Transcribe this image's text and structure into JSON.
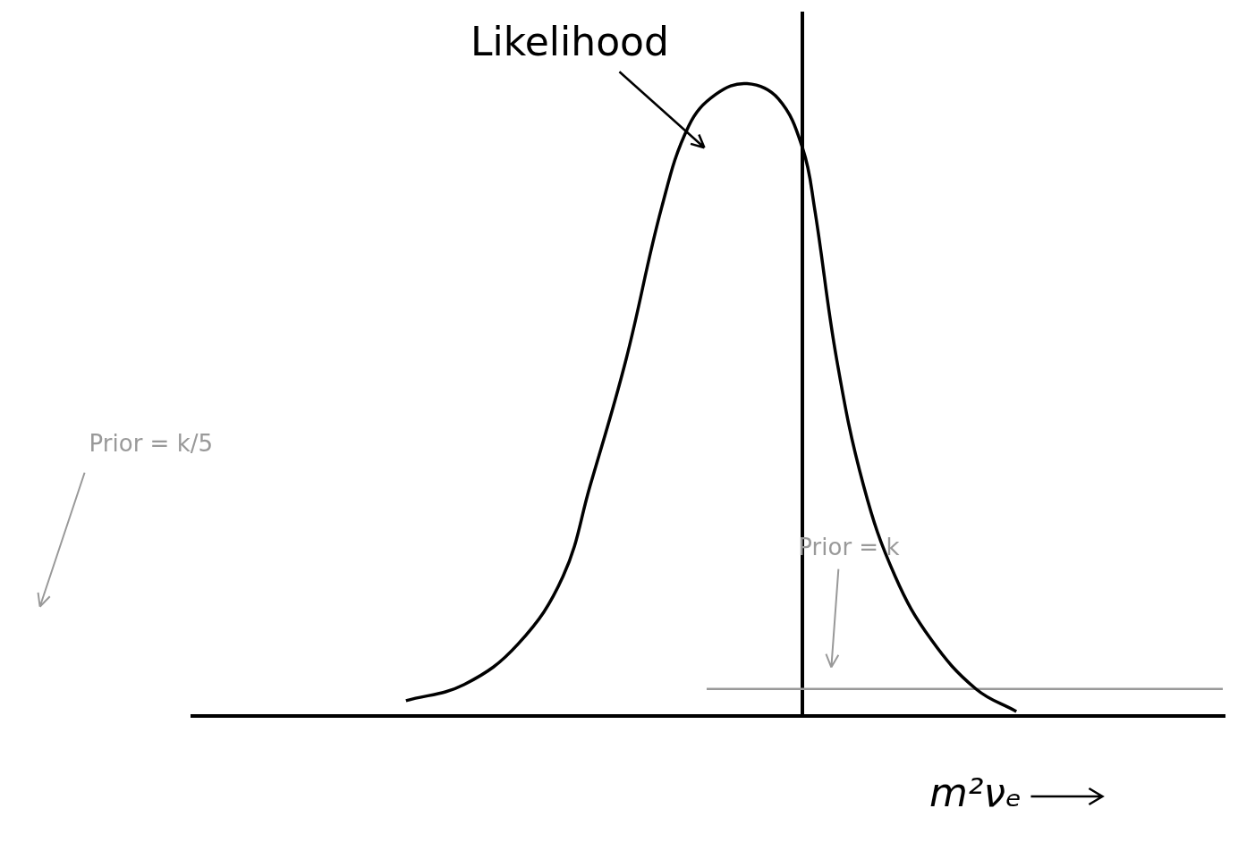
{
  "chart_data": {
    "type": "line",
    "x_label": "m²νₑ",
    "xlim": [
      -6.8,
      4.7
    ],
    "ylim": [
      0,
      7.8
    ],
    "tick_labels": false,
    "grid": false,
    "series": [
      {
        "name": "Likelihood",
        "color": "#000000",
        "line_style": "solid",
        "x": [
          -4.42,
          -3.77,
          -3.17,
          -2.67,
          -2.37,
          -1.97,
          -1.57,
          -1.27,
          -0.97,
          -0.62,
          -0.27,
          0,
          0.13,
          0.38,
          0.68,
          1.03,
          1.43,
          1.93,
          2.38
        ],
        "values": [
          0.17,
          0.35,
          0.8,
          1.55,
          2.55,
          3.95,
          5.65,
          6.55,
          6.9,
          7.02,
          6.85,
          6.3,
          5.65,
          3.95,
          2.55,
          1.55,
          0.85,
          0.3,
          0.05
        ]
      },
      {
        "name": "Prior = k",
        "color": "#999999",
        "line_style": "solid",
        "x": [
          -1.07,
          4.68
        ],
        "values": [
          0.3,
          0.3
        ]
      }
    ],
    "annotations": [
      {
        "text": "Likelihood",
        "x": -3.7,
        "y": 7.45,
        "color": "#000000"
      },
      {
        "text": "Prior = k",
        "x": -0.05,
        "y": 1.85,
        "color": "#999999"
      },
      {
        "text": "Prior = k/5",
        "x": -7.95,
        "y": 3.0,
        "color": "#999999"
      }
    ]
  }
}
